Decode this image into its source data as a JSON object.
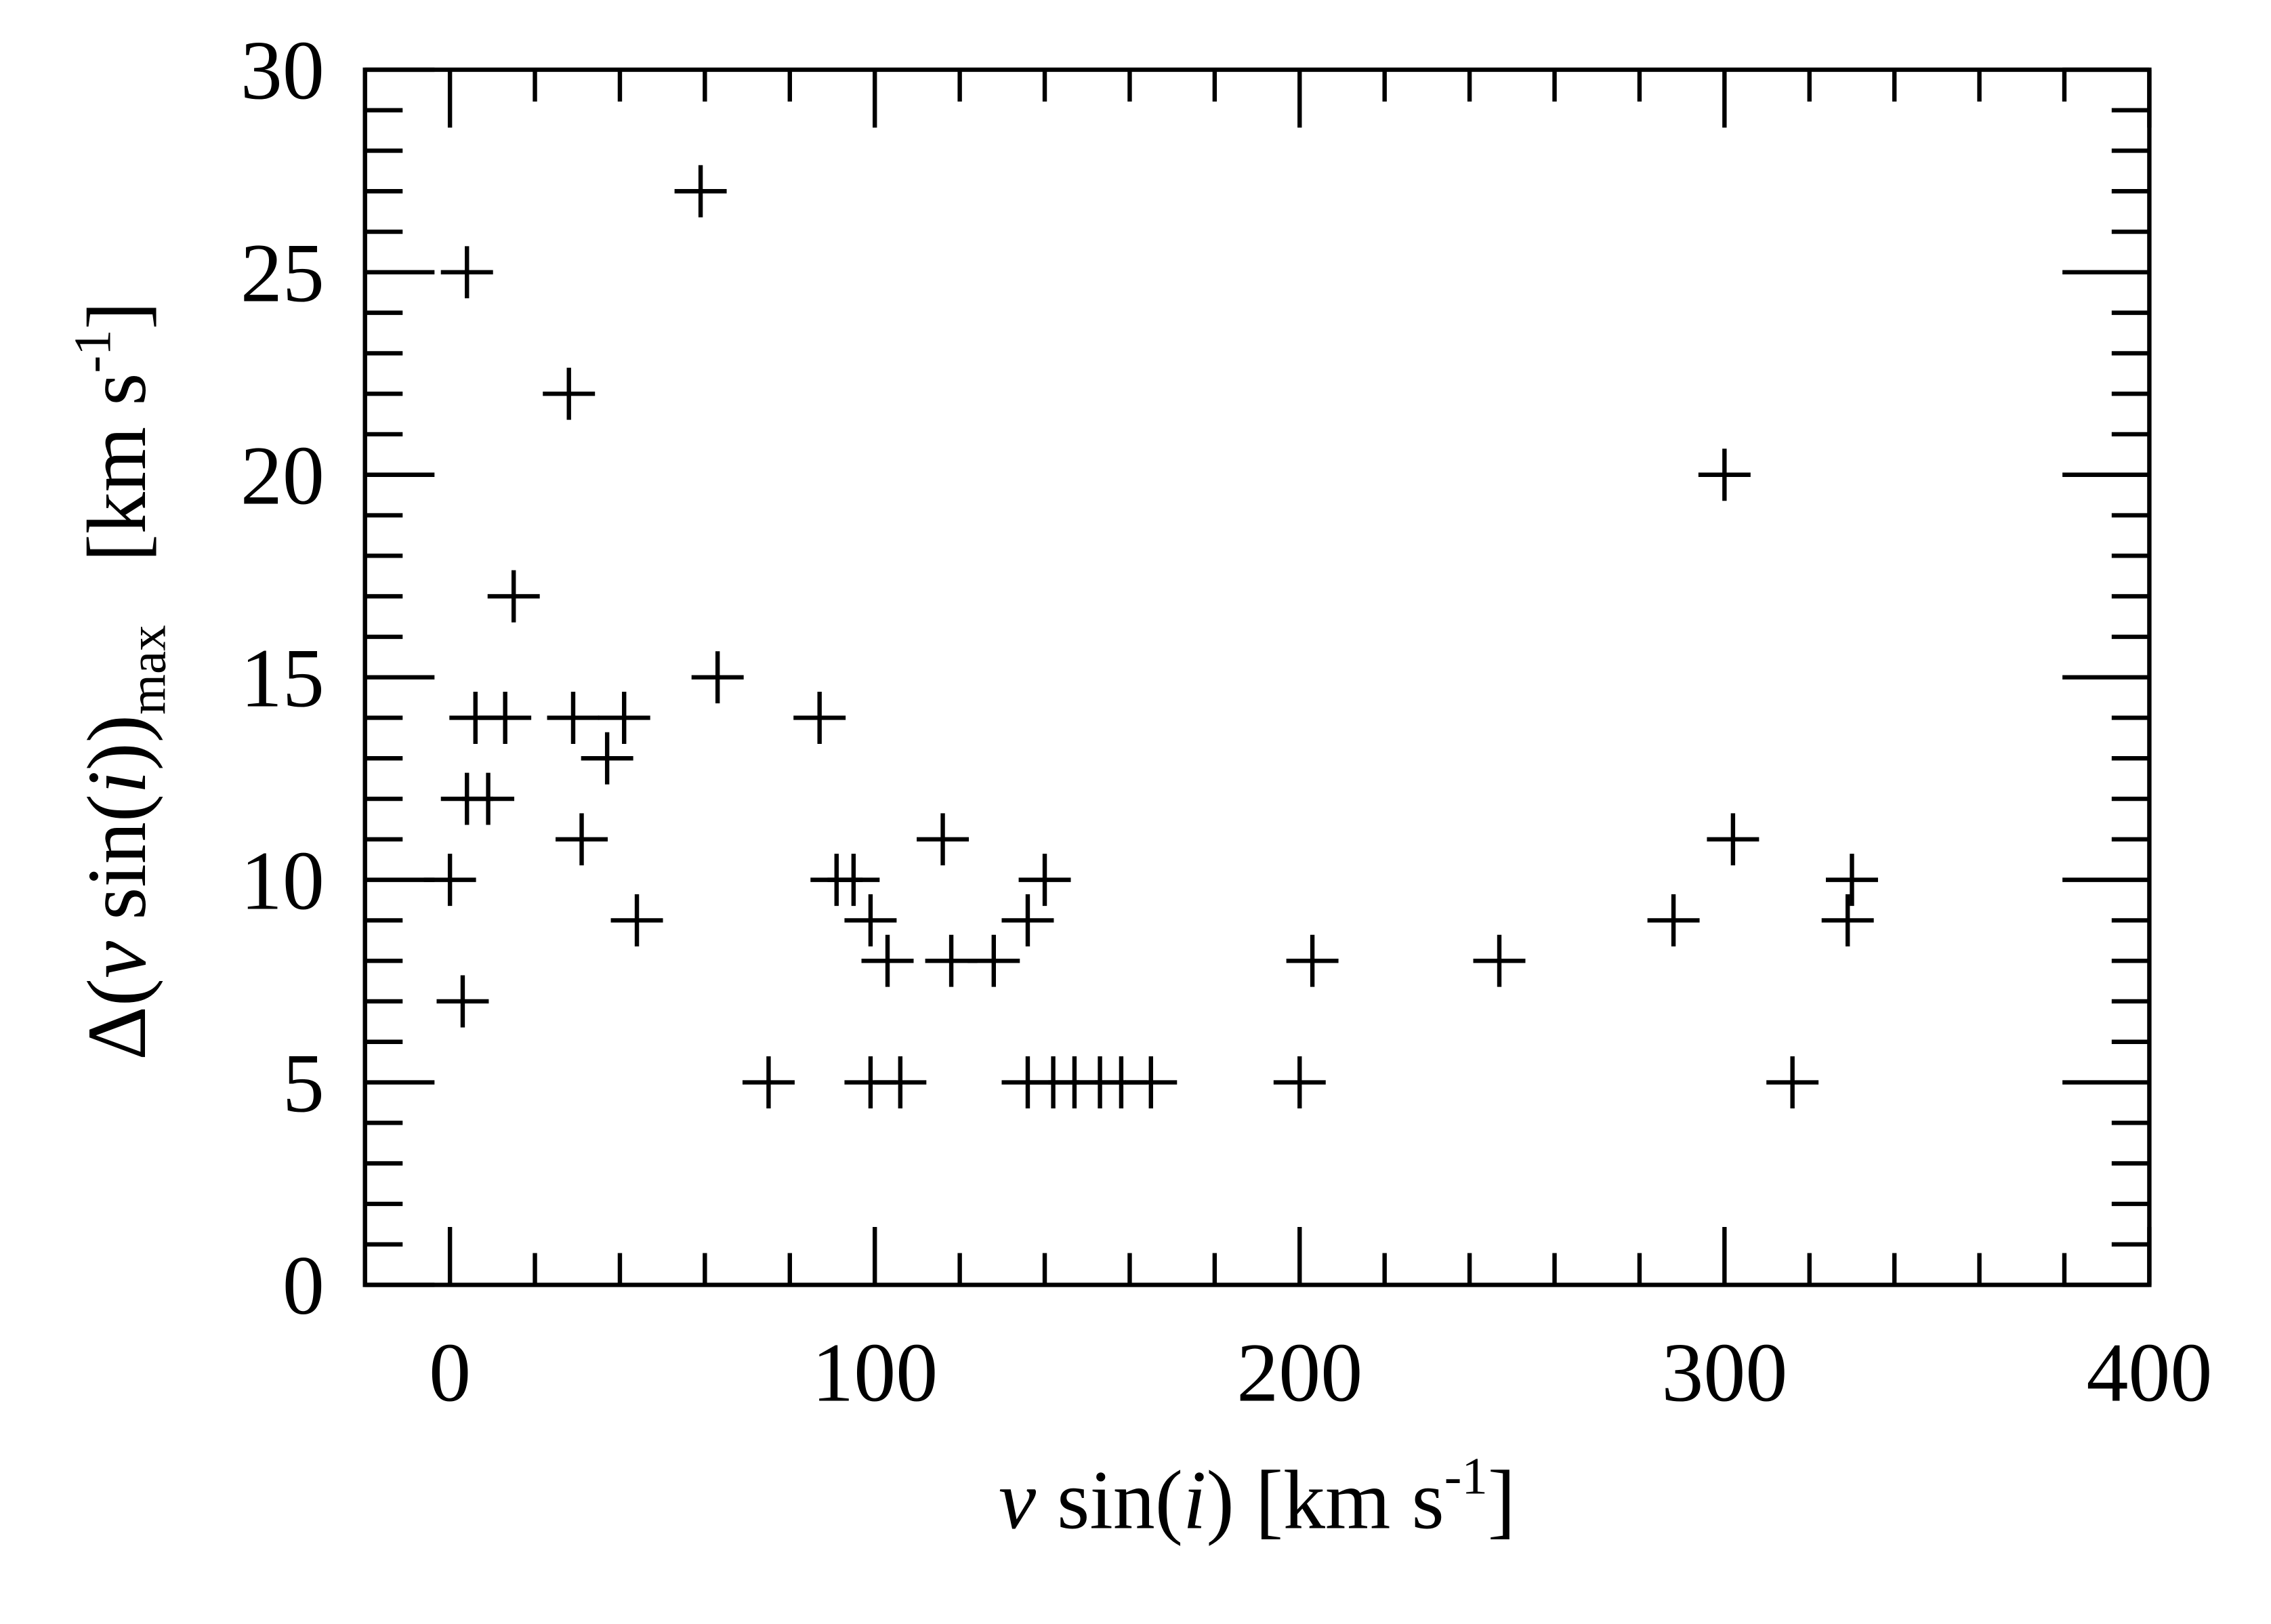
{
  "chart_data": {
    "type": "scatter",
    "xlabel": [
      "v",
      " sin(",
      "i",
      ") [km s",
      "-1",
      "]"
    ],
    "ylabel": [
      "Δ(",
      "v",
      " sin(",
      "i",
      "))",
      "max",
      "   [km s",
      "-1",
      "]"
    ],
    "marker": "+",
    "color": "#000000",
    "x": [
      59,
      4,
      28,
      300,
      15,
      63,
      6,
      13,
      29,
      41,
      87,
      37,
      4,
      9,
      31,
      116,
      302,
      0,
      91,
      95,
      140,
      330,
      44,
      99,
      136,
      288,
      329,
      103,
      118,
      128,
      203,
      247,
      3,
      75,
      99,
      106,
      136,
      142,
      147,
      153,
      158,
      165,
      200,
      316
    ],
    "y": [
      27,
      25,
      22,
      20,
      17,
      15,
      14,
      14,
      14,
      14,
      14,
      13,
      12,
      12,
      11,
      11,
      11,
      10,
      10,
      10,
      10,
      10,
      9,
      9,
      9,
      9,
      9,
      8,
      8,
      8,
      8,
      8,
      7,
      5,
      5,
      5,
      5,
      5,
      5,
      5,
      5,
      5,
      5,
      5
    ],
    "xlim": [
      -20,
      400
    ],
    "xticks": [
      0,
      100,
      200,
      300,
      400
    ],
    "ylim": [
      0,
      30
    ],
    "yticks": [
      0,
      5,
      10,
      15,
      20,
      25,
      30
    ]
  }
}
